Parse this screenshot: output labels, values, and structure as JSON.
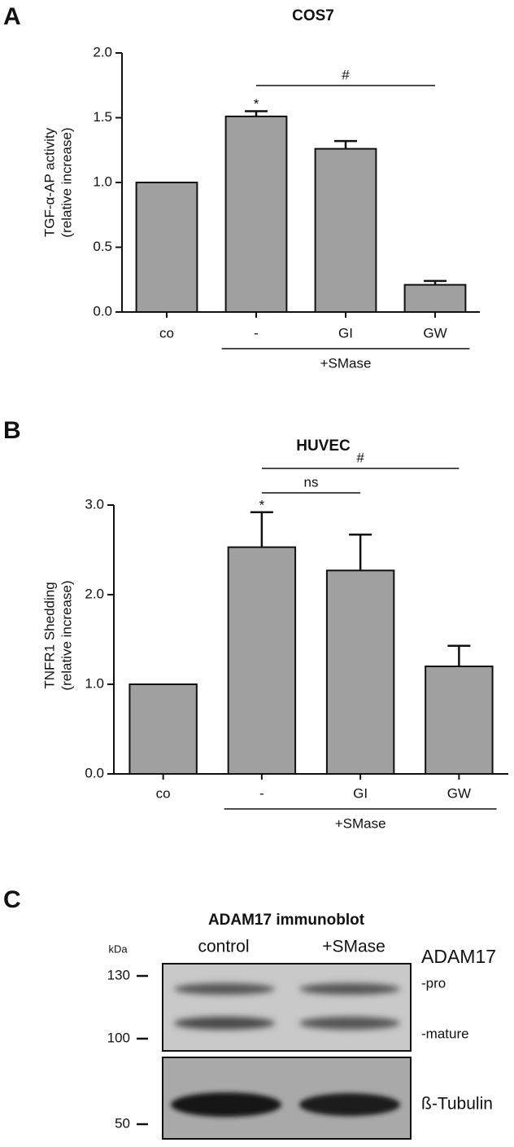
{
  "chart_data": [
    {
      "type": "bar",
      "panel": "A",
      "title": "COS7",
      "y_label": [
        "TGF-α-AP activity",
        "(relative increase)"
      ],
      "categories": [
        "co",
        "-",
        "GI",
        "GW"
      ],
      "values": [
        1.0,
        1.51,
        1.26,
        0.21
      ],
      "errors": [
        null,
        0.04,
        0.06,
        0.03
      ],
      "color": "#a0a0a0",
      "ylim": [
        0,
        2
      ],
      "yticks": [
        {
          "value": 0,
          "label": "0.0"
        },
        {
          "value": 0.5,
          "label": "0.5"
        },
        {
          "value": 1,
          "label": "1.0"
        },
        {
          "value": 1.5,
          "label": "1.5"
        },
        {
          "value": 2,
          "label": "2.0"
        }
      ],
      "markers": [
        {
          "label": "*",
          "category": "-"
        }
      ],
      "brackets": [
        {
          "label": "#",
          "from": "-",
          "to": "GW"
        }
      ],
      "group": {
        "label": "+SMase",
        "from": "-",
        "to": "GW"
      }
    },
    {
      "type": "bar",
      "panel": "B",
      "title": "HUVEC",
      "y_label": [
        "TNFR1 Shedding",
        "(relative increase)"
      ],
      "categories": [
        "co",
        "-",
        "GI",
        "GW"
      ],
      "values": [
        1.0,
        2.53,
        2.27,
        1.2
      ],
      "errors": [
        null,
        0.39,
        0.4,
        0.23
      ],
      "color": "#a0a0a0",
      "ylim": [
        0,
        3
      ],
      "yticks": [
        {
          "value": 0,
          "label": "0.0"
        },
        {
          "value": 1,
          "label": "1.0"
        },
        {
          "value": 2,
          "label": "2.0"
        },
        {
          "value": 3,
          "label": "3.0"
        }
      ],
      "markers": [
        {
          "label": "*",
          "category": "-"
        }
      ],
      "brackets": [
        {
          "label": "ns",
          "from": "-",
          "to": "GI"
        },
        {
          "label": "#",
          "from": "-",
          "to": "GW"
        }
      ],
      "group": {
        "label": "+SMase",
        "from": "-",
        "to": "GW"
      }
    }
  ],
  "blot": {
    "panel": "C",
    "title": "ADAM17 immunoblot",
    "unit": "kDa",
    "lanes": [
      "control",
      "+SMase"
    ],
    "markers": [
      "130",
      "100",
      "50"
    ],
    "protein": "ADAM17",
    "forms": [
      "-pro",
      "-mature"
    ],
    "loading": "ß-Tubulin"
  }
}
